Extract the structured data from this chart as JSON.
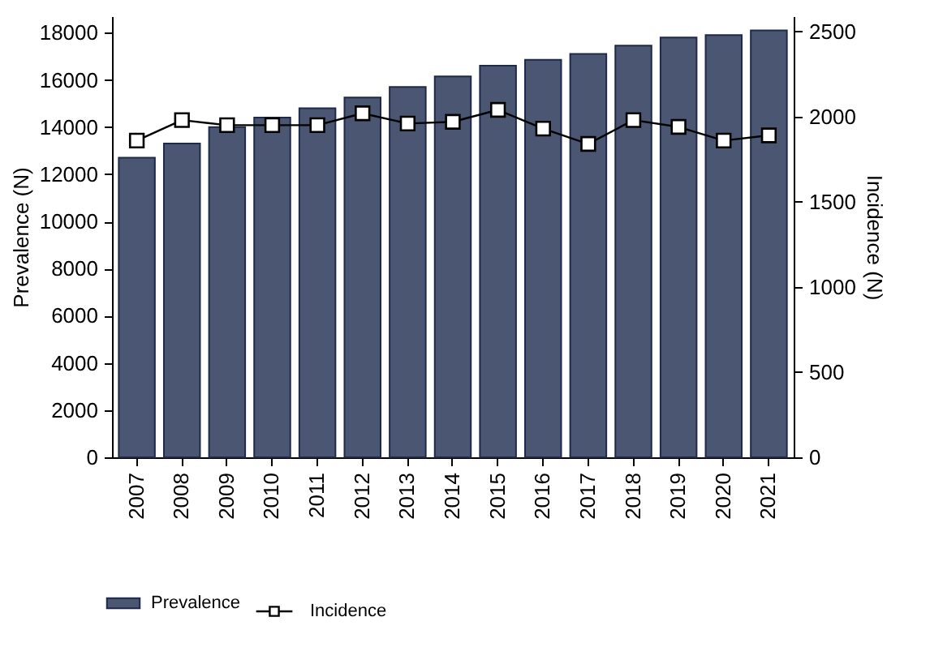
{
  "chart_data": {
    "type": "bar",
    "ylabel": "Prevalence (N)",
    "y2label": "Incidence (N)",
    "categories": [
      "2007",
      "2008",
      "2009",
      "2010",
      "2011",
      "2012",
      "2013",
      "2014",
      "2015",
      "2016",
      "2017",
      "2018",
      "2019",
      "2020",
      "2021"
    ],
    "series": [
      {
        "name": "Prevalence",
        "color": "#4b5672",
        "values": [
          12700,
          13300,
          14000,
          14400,
          14800,
          15250,
          15700,
          16150,
          16600,
          16850,
          17100,
          17450,
          17800,
          17900,
          18100
        ]
      },
      {
        "name": "Incidence",
        "type": "line",
        "axis": "y2",
        "color": "#000000",
        "marker": "square",
        "values": [
          1860,
          1980,
          1950,
          1950,
          1950,
          2020,
          1960,
          1970,
          2040,
          1930,
          1840,
          1980,
          1940,
          1860,
          1890
        ]
      }
    ],
    "ylim": [
      0,
      18700
    ],
    "yticks": [
      0,
      2000,
      4000,
      6000,
      8000,
      10000,
      12000,
      14000,
      16000,
      18000
    ],
    "y2lim": [
      0,
      2590
    ],
    "y2ticks": [
      0,
      500,
      1000,
      1500,
      2000,
      2500
    ],
    "grid": false,
    "legend": "bottom"
  }
}
